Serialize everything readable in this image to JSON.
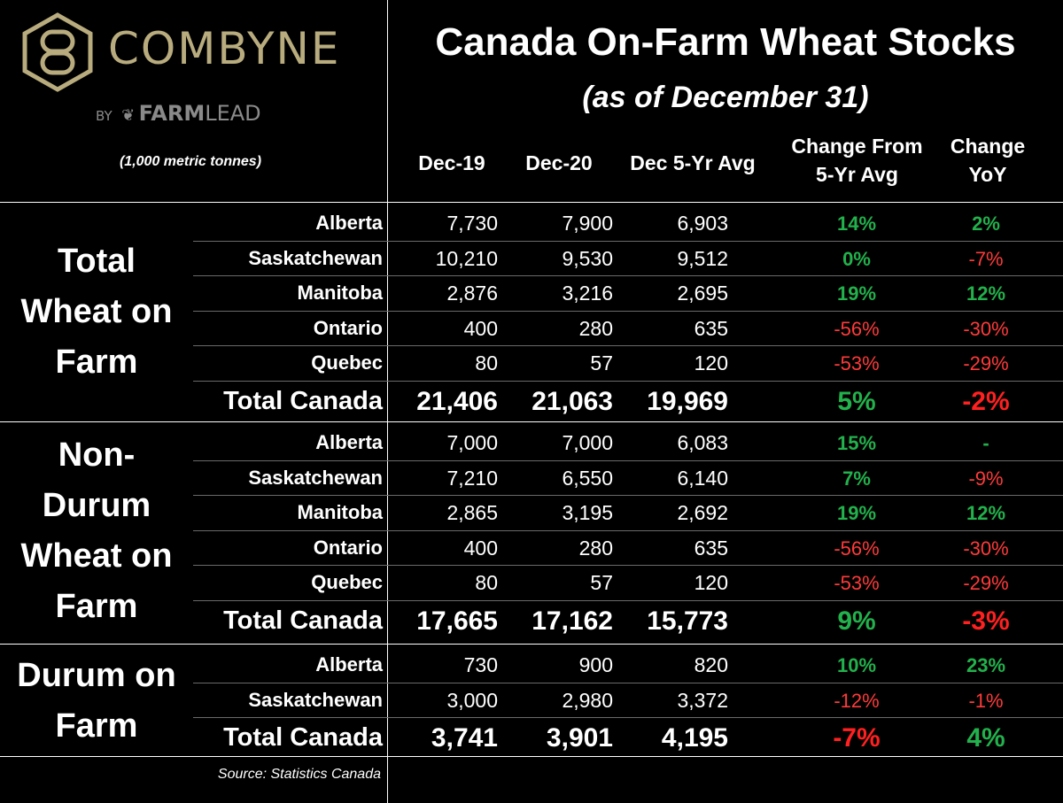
{
  "brand": {
    "name": "COMBYNE",
    "by": "BY",
    "partner_bold": "FARM",
    "partner_light": "LEAD",
    "icon": "combyne-hexagon-logo-icon",
    "color": "#b8ac7e"
  },
  "header": {
    "title": "Canada On-Farm Wheat Stocks",
    "subtitle": "(as of December 31)",
    "units": "(1,000 metric tonnes)"
  },
  "columns": [
    {
      "label_lines": [
        "Dec-19"
      ]
    },
    {
      "label_lines": [
        "Dec-20"
      ]
    },
    {
      "label_lines": [
        "Dec 5-Yr Avg"
      ]
    },
    {
      "label_lines": [
        "Change From",
        "5-Yr Avg"
      ]
    },
    {
      "label_lines": [
        "Change",
        "YoY"
      ]
    }
  ],
  "colors": {
    "positive": "#22b14c",
    "negative": "#ff3a3a"
  },
  "footer": {
    "source": "Source: Statistics Canada"
  },
  "chart_data": {
    "type": "table",
    "title": "Canada On-Farm Wheat Stocks",
    "subtitle": "(as of December 31)",
    "units": "(1,000 metric tonnes)",
    "columns": [
      "Dec-19",
      "Dec-20",
      "Dec 5-Yr Avg",
      "Change From 5-Yr Avg",
      "Change YoY"
    ],
    "groups": [
      {
        "label_lines": [
          "Total",
          "Wheat on",
          "Farm"
        ],
        "rows": [
          {
            "label": "Alberta",
            "values": [
              "7,730",
              "7,900",
              "6,903",
              "14%",
              "2%"
            ]
          },
          {
            "label": "Saskatchewan",
            "values": [
              "10,210",
              "9,530",
              "9,512",
              "0%",
              "-7%"
            ]
          },
          {
            "label": "Manitoba",
            "values": [
              "2,876",
              "3,216",
              "2,695",
              "19%",
              "12%"
            ]
          },
          {
            "label": "Ontario",
            "values": [
              "400",
              "280",
              "635",
              "-56%",
              "-30%"
            ]
          },
          {
            "label": "Quebec",
            "values": [
              "80",
              "57",
              "120",
              "-53%",
              "-29%"
            ]
          }
        ],
        "total": {
          "label": "Total Canada",
          "values": [
            "21,406",
            "21,063",
            "19,969",
            "5%",
            "-2%"
          ]
        }
      },
      {
        "label_lines": [
          "Non-",
          "Durum",
          "Wheat on",
          "Farm"
        ],
        "rows": [
          {
            "label": "Alberta",
            "values": [
              "7,000",
              "7,000",
              "6,083",
              "15%",
              "-"
            ]
          },
          {
            "label": "Saskatchewan",
            "values": [
              "7,210",
              "6,550",
              "6,140",
              "7%",
              "-9%"
            ]
          },
          {
            "label": "Manitoba",
            "values": [
              "2,865",
              "3,195",
              "2,692",
              "19%",
              "12%"
            ]
          },
          {
            "label": "Ontario",
            "values": [
              "400",
              "280",
              "635",
              "-56%",
              "-30%"
            ]
          },
          {
            "label": "Quebec",
            "values": [
              "80",
              "57",
              "120",
              "-53%",
              "-29%"
            ]
          }
        ],
        "total": {
          "label": "Total Canada",
          "values": [
            "17,665",
            "17,162",
            "15,773",
            "9%",
            "-3%"
          ]
        }
      },
      {
        "label_lines": [
          "Durum on",
          "Farm"
        ],
        "rows": [
          {
            "label": "Alberta",
            "values": [
              "730",
              "900",
              "820",
              "10%",
              "23%"
            ]
          },
          {
            "label": "Saskatchewan",
            "values": [
              "3,000",
              "2,980",
              "3,372",
              "-12%",
              "-1%"
            ]
          }
        ],
        "total": {
          "label": "Total Canada",
          "values": [
            "3,741",
            "3,901",
            "4,195",
            "-7%",
            "4%"
          ]
        }
      }
    ]
  }
}
